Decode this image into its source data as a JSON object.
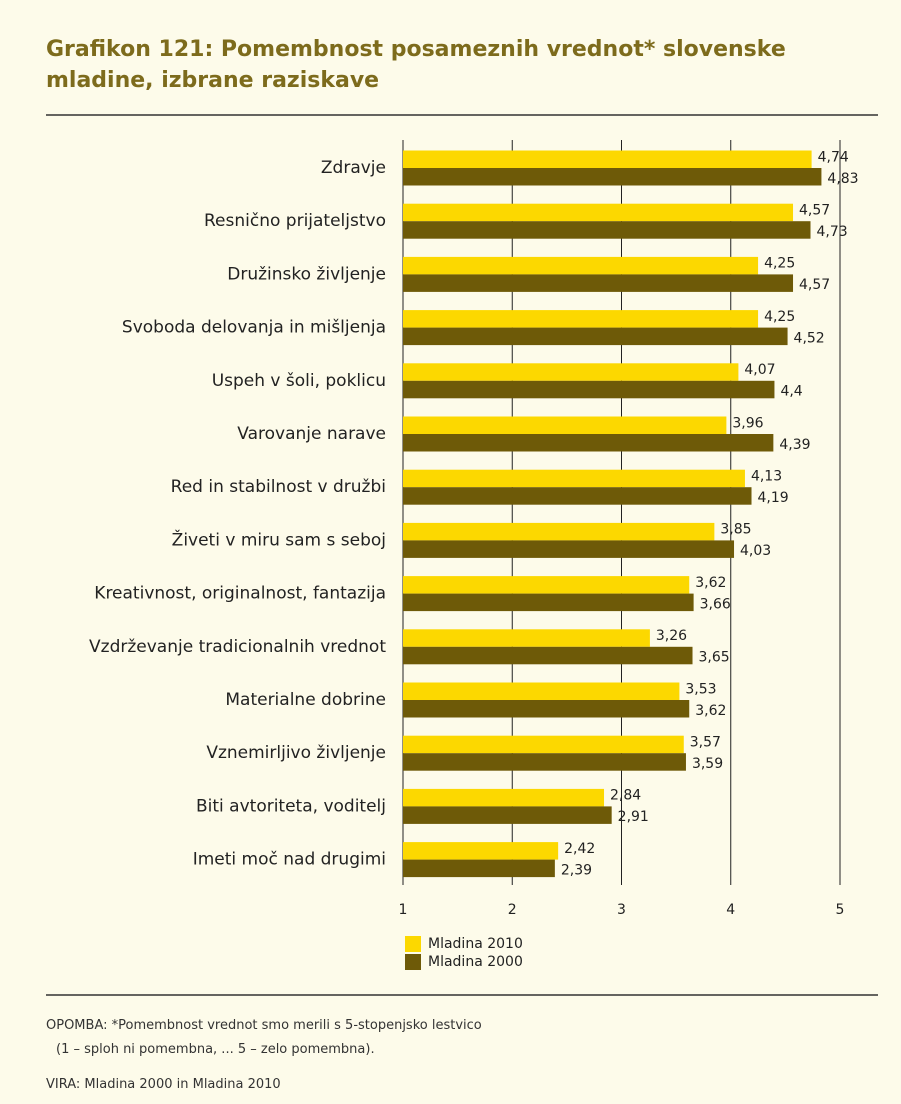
{
  "chart_data": {
    "type": "hbar",
    "title": "Grafikon 121: Pomembnost posameznih vrednot* slovenske mladine, izbrane raziskave",
    "categories": [
      "Zdravje",
      "Resnično prijateljstvo",
      "Družinsko življenje",
      "Svoboda delovanja in mišljenja",
      "Uspeh v šoli, poklicu",
      "Varovanje narave",
      "Red in stabilnost v družbi",
      "Živeti v miru sam s seboj",
      "Kreativnost, originalnost, fantazija",
      "Vzdrževanje tradicionalnih vrednot",
      "Materialne dobrine",
      "Vznemirljivo življenje",
      "Biti avtoriteta, voditelj",
      "Imeti moč nad drugimi"
    ],
    "series": [
      {
        "name": "Mladina 2010",
        "color": "#fcd800",
        "values": [
          4.74,
          4.57,
          4.25,
          4.25,
          4.07,
          3.96,
          4.13,
          3.85,
          3.62,
          3.26,
          3.53,
          3.57,
          2.84,
          2.42
        ],
        "value_labels": [
          "4,74",
          "4,57",
          "4,25",
          "4,25",
          "4,07",
          "3,96",
          "4,13",
          "3,85",
          "3,62",
          "3,26",
          "3,53",
          "3,57",
          "2,84",
          "2,42"
        ]
      },
      {
        "name": "Mladina 2000",
        "color": "#6e5a08",
        "values": [
          4.83,
          4.73,
          4.57,
          4.52,
          4.4,
          4.39,
          4.19,
          4.03,
          3.66,
          3.65,
          3.62,
          3.59,
          2.91,
          2.39
        ],
        "value_labels": [
          "4,83",
          "4,73",
          "4,57",
          "4,52",
          "4,4",
          "4,39",
          "4,19",
          "4,03",
          "3,66",
          "3,65",
          "3,62",
          "3,59",
          "2,91",
          "2,39"
        ]
      }
    ],
    "xlim": [
      1,
      5
    ],
    "xticks": [
      1,
      2,
      3,
      4,
      5
    ],
    "grid": true,
    "notes": [
      "OPOMBA: *Pomembnost vrednot smo merili s 5-stopenjsko lestvico",
      "(1 – sploh ni pomembna, ... 5 – zelo pomembna).",
      "VIRA: Mladina 2000 in Mladina 2010"
    ]
  }
}
